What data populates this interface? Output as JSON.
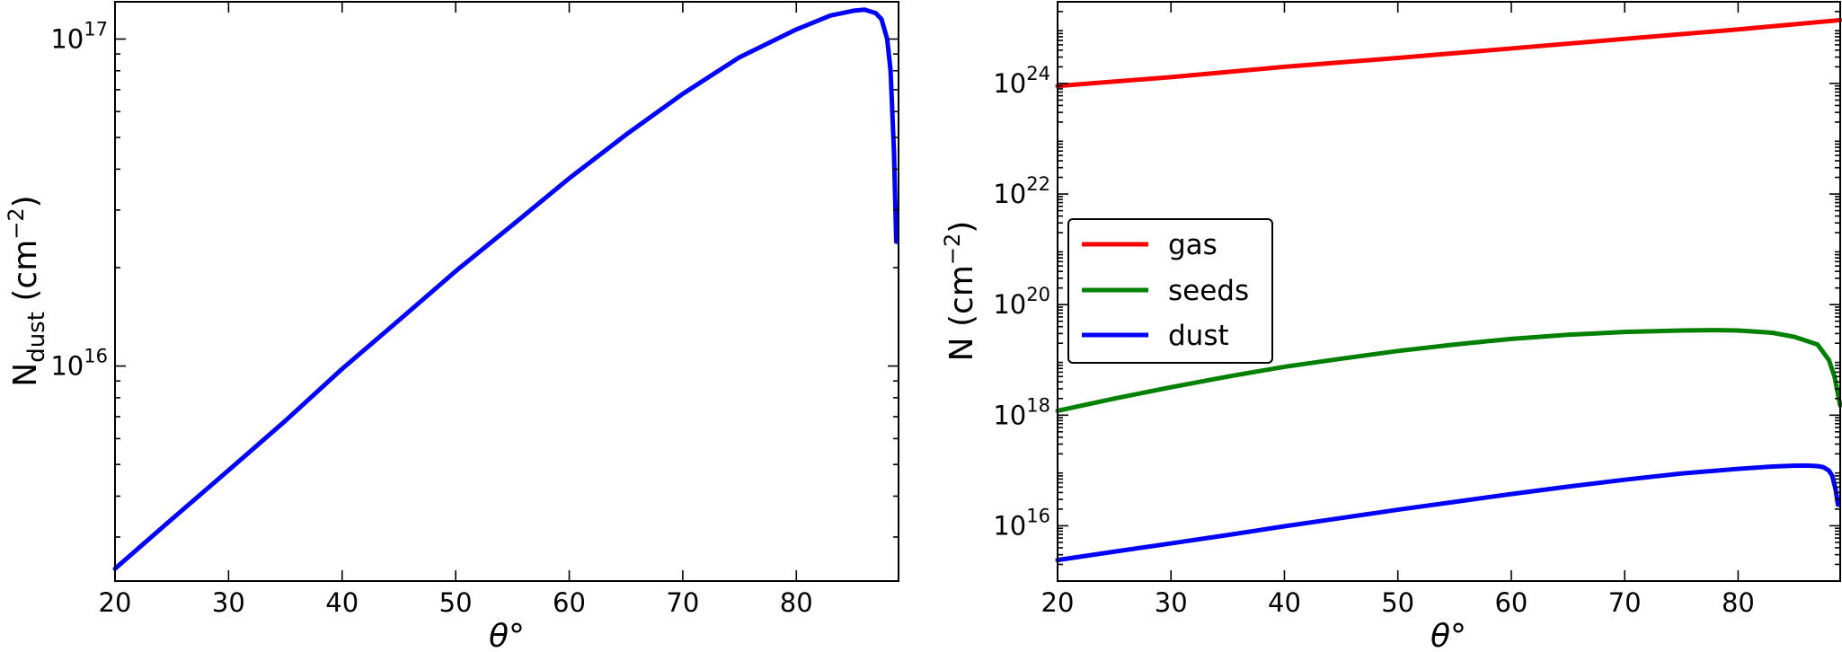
{
  "chart_data": [
    {
      "type": "line",
      "title": "",
      "xlabel": "θ°",
      "ylabel_main": "N",
      "ylabel_sub": "dust",
      "ylabel_unit": " (cm",
      "ylabel_unit_exp": "−2",
      "ylabel_unit_close": ")",
      "xlim": [
        20,
        89
      ],
      "ylim": [
        2200000000000000.0,
        1.3e+17
      ],
      "yscale": "log",
      "grid": false,
      "x_ticks": [
        {
          "value": 20,
          "label": "20"
        },
        {
          "value": 30,
          "label": "30"
        },
        {
          "value": 40,
          "label": "40"
        },
        {
          "value": 50,
          "label": "50"
        },
        {
          "value": 60,
          "label": "60"
        },
        {
          "value": 70,
          "label": "70"
        },
        {
          "value": 80,
          "label": "80"
        }
      ],
      "y_ticks": [
        {
          "value": 1e+16,
          "base": "10",
          "exp": "16"
        },
        {
          "value": 1e+17,
          "base": "10",
          "exp": "17"
        }
      ],
      "series": [
        {
          "color": "#0000ff",
          "x": [
            20,
            25,
            30,
            35,
            40,
            45,
            50,
            55,
            60,
            65,
            70,
            75,
            80,
            83,
            85,
            86,
            87,
            87.5,
            88,
            88.3,
            88.6,
            88.8
          ],
          "y": [
            2400000000000000.0,
            3400000000000000.0,
            4800000000000000.0,
            6800000000000000.0,
            9800000000000000.0,
            1.38e+16,
            1.95e+16,
            2.7e+16,
            3.75e+16,
            5.1e+16,
            6.8e+16,
            8.8e+16,
            1.07e+17,
            1.18e+17,
            1.22e+17,
            1.23e+17,
            1.2e+17,
            1.15e+17,
            1e+17,
            8e+16,
            4.5e+16,
            2.4e+16
          ]
        }
      ]
    },
    {
      "type": "line",
      "title": "",
      "xlabel": "θ°",
      "ylabel_main": "N (cm",
      "ylabel_unit_exp": "−2",
      "ylabel_unit_close": ")",
      "xlim": [
        20,
        89
      ],
      "ylim": [
        1000000000000000.0,
        3e+25
      ],
      "yscale": "log",
      "grid": false,
      "legend_position": "center-left",
      "x_ticks": [
        {
          "value": 20,
          "label": "20"
        },
        {
          "value": 30,
          "label": "30"
        },
        {
          "value": 40,
          "label": "40"
        },
        {
          "value": 50,
          "label": "50"
        },
        {
          "value": 60,
          "label": "60"
        },
        {
          "value": 70,
          "label": "70"
        },
        {
          "value": 80,
          "label": "80"
        }
      ],
      "y_ticks": [
        {
          "value": 1e+16,
          "base": "10",
          "exp": "16"
        },
        {
          "value": 1e+18,
          "base": "10",
          "exp": "18"
        },
        {
          "value": 1e+20,
          "base": "10",
          "exp": "20"
        },
        {
          "value": 1e+22,
          "base": "10",
          "exp": "22"
        },
        {
          "value": 1e+24,
          "base": "10",
          "exp": "24"
        }
      ],
      "series": [
        {
          "name": "gas",
          "color": "#ff0000",
          "x": [
            20,
            30,
            40,
            50,
            60,
            70,
            80,
            89
          ],
          "y": [
            9e+23,
            1.3e+24,
            2e+24,
            2.9e+24,
            4.3e+24,
            6.4e+24,
            9.5e+24,
            1.4e+25
          ]
        },
        {
          "name": "seeds",
          "color": "#008000",
          "x": [
            20,
            25,
            30,
            35,
            40,
            45,
            50,
            55,
            60,
            65,
            70,
            75,
            78,
            80,
            83,
            85,
            87,
            88,
            88.5,
            89
          ],
          "y": [
            1.2e+18,
            2e+18,
            3.2e+18,
            5e+18,
            7.5e+18,
            1.05e+19,
            1.45e+19,
            1.9e+19,
            2.4e+19,
            2.85e+19,
            3.2e+19,
            3.4e+19,
            3.45e+19,
            3.4e+19,
            3.1e+19,
            2.6e+19,
            1.9e+19,
            1e+19,
            5e+18,
            1.5e+18
          ]
        },
        {
          "name": "dust",
          "color": "#0000ff",
          "x": [
            20,
            25,
            30,
            35,
            40,
            45,
            50,
            55,
            60,
            65,
            70,
            75,
            80,
            83,
            85,
            86,
            87,
            87.5,
            88,
            88.3,
            88.6,
            88.8
          ],
          "y": [
            2400000000000000.0,
            3400000000000000.0,
            4800000000000000.0,
            6800000000000000.0,
            9800000000000000.0,
            1.38e+16,
            1.95e+16,
            2.7e+16,
            3.75e+16,
            5.1e+16,
            6.8e+16,
            8.8e+16,
            1.07e+17,
            1.18e+17,
            1.22e+17,
            1.23e+17,
            1.2e+17,
            1.15e+17,
            1e+17,
            8e+16,
            4.5e+16,
            2.4e+16
          ]
        }
      ]
    }
  ]
}
